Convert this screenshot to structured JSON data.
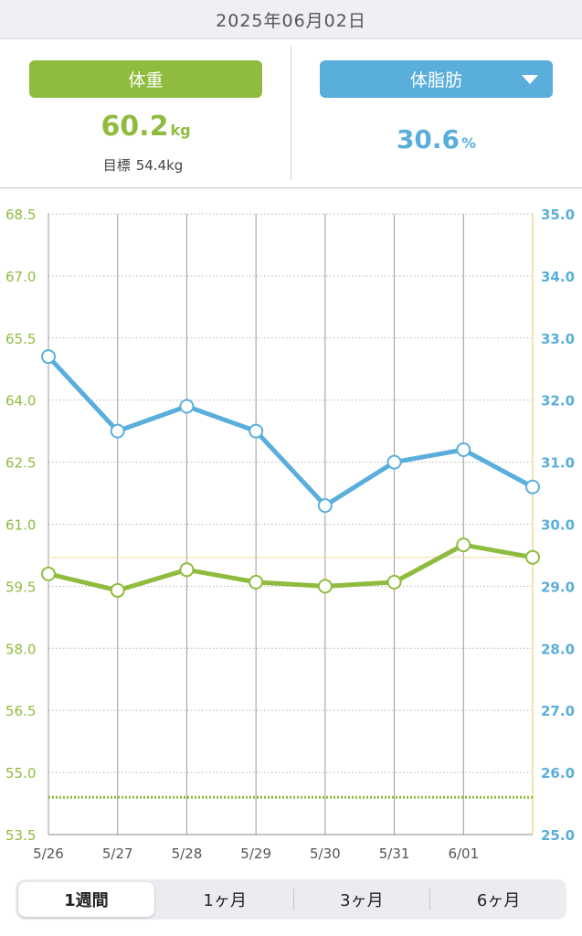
{
  "header": {
    "date": "2025年06月02日"
  },
  "weight": {
    "label": "体重",
    "value": "60.2",
    "unit": "kg",
    "goal_label": "目標",
    "goal_value": "54.4kg"
  },
  "fat": {
    "label": "体脂肪",
    "value": "30.6",
    "unit": "%"
  },
  "colors": {
    "weight": "#8fbc3f",
    "fat": "#5aaedc",
    "goal": "#8fbc3f",
    "reference": "#f5d9a8"
  },
  "chart_data": {
    "type": "line",
    "x": [
      "5/26",
      "5/27",
      "5/28",
      "5/29",
      "5/30",
      "5/31",
      "6/01",
      "6/02"
    ],
    "x_tick_labels": [
      "5/26",
      "5/27",
      "5/28",
      "5/29",
      "5/30",
      "5/31",
      "6/01"
    ],
    "series": [
      {
        "name": "体重",
        "axis": "left",
        "values": [
          59.8,
          59.4,
          59.9,
          59.6,
          59.5,
          59.6,
          60.5,
          60.2
        ]
      },
      {
        "name": "体脂肪",
        "axis": "right",
        "values": [
          32.7,
          31.5,
          31.9,
          31.5,
          30.3,
          31.0,
          31.2,
          30.6
        ]
      }
    ],
    "y_left": {
      "min": 53.5,
      "max": 68.5,
      "ticks": [
        "68.5",
        "67.0",
        "65.5",
        "64.0",
        "62.5",
        "61.0",
        "59.5",
        "58.0",
        "56.5",
        "55.0",
        "53.5"
      ]
    },
    "y_right": {
      "min": 25.0,
      "max": 35.0,
      "ticks": [
        "35.0",
        "34.0",
        "33.0",
        "32.0",
        "31.0",
        "30.0",
        "29.0",
        "28.0",
        "27.0",
        "26.0",
        "25.0"
      ]
    },
    "goal_weight": 54.4,
    "reference_line": 60.2,
    "grid": true
  },
  "period_tabs": [
    {
      "label": "1週間",
      "active": true
    },
    {
      "label": "1ヶ月",
      "active": false
    },
    {
      "label": "3ヶ月",
      "active": false
    },
    {
      "label": "6ヶ月",
      "active": false
    }
  ]
}
